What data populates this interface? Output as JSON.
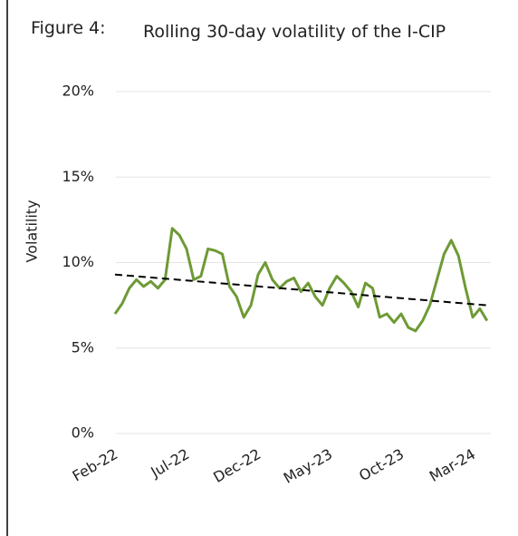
{
  "chart_data": {
    "type": "line",
    "figure_label": "Figure 4:",
    "title": "Rolling 30-day volatility of the I-CIP",
    "y_label": "Volatility",
    "categories": [
      "Feb-22",
      null,
      null,
      null,
      null,
      null,
      null,
      null,
      null,
      null,
      "Jul-22",
      null,
      null,
      null,
      null,
      null,
      null,
      null,
      null,
      null,
      "Dec-22",
      null,
      null,
      null,
      null,
      null,
      null,
      null,
      null,
      null,
      "May-23",
      null,
      null,
      null,
      null,
      null,
      null,
      null,
      null,
      null,
      "Oct-23",
      null,
      null,
      null,
      null,
      null,
      null,
      null,
      null,
      null,
      "Mar-24",
      null,
      null
    ],
    "series": [
      {
        "color": "#6e9a35",
        "values": [
          7.0,
          7.6,
          8.5,
          9.0,
          8.6,
          8.9,
          8.5,
          9.0,
          12.0,
          11.6,
          10.8,
          9.0,
          9.2,
          10.8,
          10.7,
          10.5,
          8.6,
          8.0,
          6.8,
          7.5,
          9.3,
          10.0,
          9.0,
          8.5,
          8.9,
          9.1,
          8.3,
          8.8,
          8.0,
          7.5,
          8.5,
          9.2,
          8.8,
          8.3,
          7.4,
          8.8,
          8.5,
          6.8,
          7.0,
          6.5,
          7.0,
          6.2,
          6.0,
          6.6,
          7.5,
          9.0,
          10.5,
          11.3,
          10.4,
          8.5,
          6.8,
          7.3,
          6.6
        ]
      }
    ],
    "trendline": {
      "color": "#000000",
      "values": [
        9.3,
        7.5
      ]
    },
    "ylim": [
      0,
      20
    ],
    "yticks": [
      {
        "value": 0,
        "label": "0%"
      },
      {
        "value": 5,
        "label": "5%"
      },
      {
        "value": 10,
        "label": "10%"
      },
      {
        "value": 15,
        "label": "15%"
      },
      {
        "value": 20,
        "label": "20%"
      }
    ],
    "grid": true
  }
}
